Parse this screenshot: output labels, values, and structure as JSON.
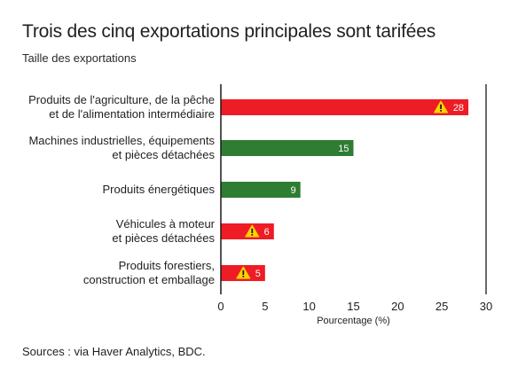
{
  "header": {
    "title": "Trois des cinq exportations principales sont tarifées",
    "subtitle": "Taille des exportations"
  },
  "footer": {
    "source": "Sources : via Haver Analytics, BDC."
  },
  "colors": {
    "tariffed": "#ee1c25",
    "not_tariffed": "#2e7d32",
    "warning": "#ffd200",
    "axis": "#1a1a1a"
  },
  "chart_data": {
    "type": "bar",
    "orientation": "horizontal",
    "categories": [
      [
        "Produits de l'agriculture, de la pêche",
        "et de l'alimentation intermédiaire"
      ],
      [
        "Machines industrielles, équipements",
        "et pièces détachées"
      ],
      [
        "Produits énergétiques"
      ],
      [
        "Véhicules à moteur",
        "et pièces détachées"
      ],
      [
        "Produits forestiers,",
        "construction et emballage"
      ]
    ],
    "values": [
      28,
      15,
      9,
      6,
      5
    ],
    "tariffed": [
      true,
      false,
      false,
      true,
      true
    ],
    "xlabel": "Pourcentage (%)",
    "xlim": [
      0,
      30
    ],
    "xticks": [
      0,
      5,
      10,
      15,
      20,
      25,
      30
    ],
    "grid": false,
    "warning_icon": "warning-triangle-icon"
  }
}
